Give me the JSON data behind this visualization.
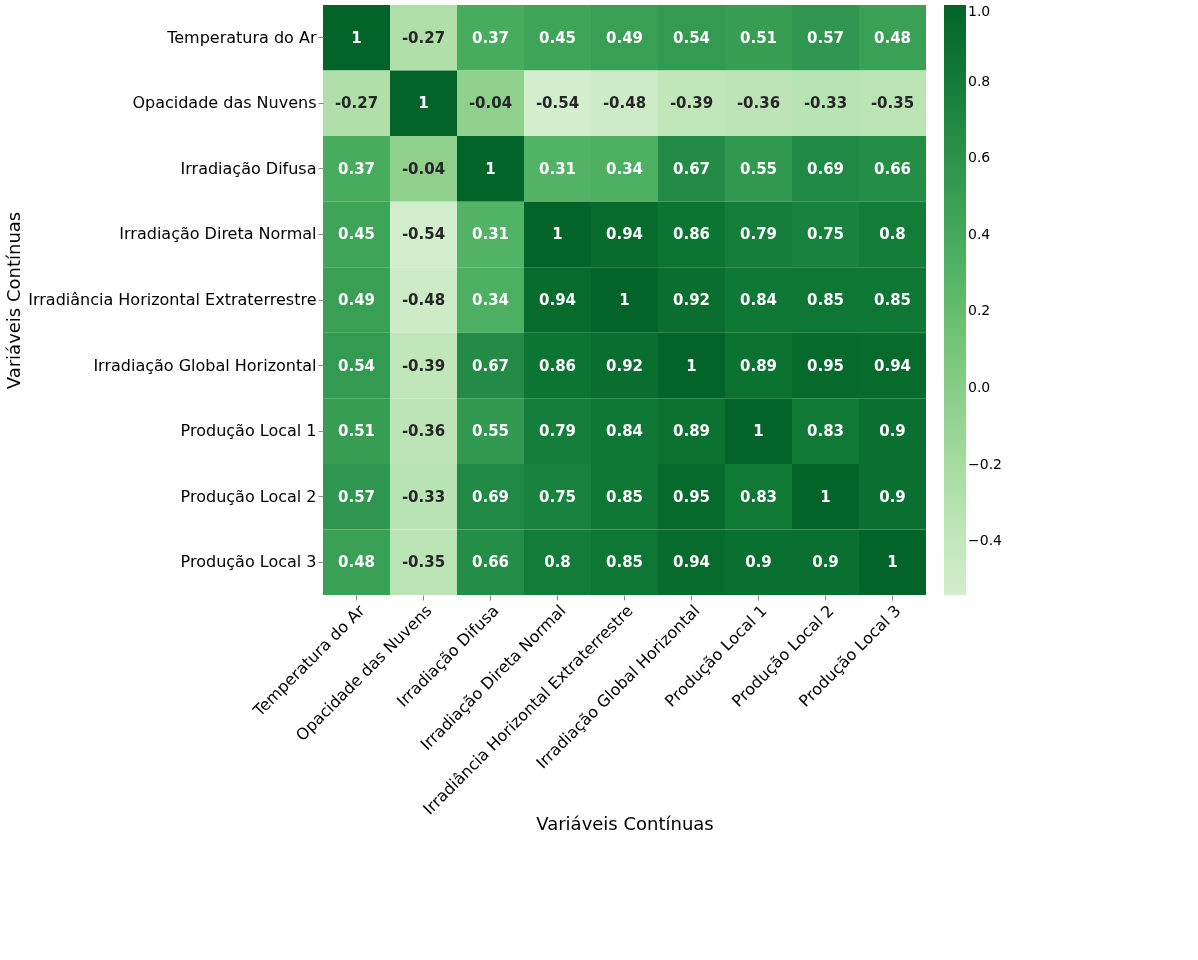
{
  "chart_data": {
    "type": "heatmap",
    "xlabel": "Variáveis Contínuas",
    "ylabel": "Variáveis Contínuas",
    "categories": [
      "Temperatura do Ar",
      "Opacidade das Nuvens",
      "Irradiação Difusa",
      "Irradiação Direta Normal",
      "Irradiância Horizontal Extraterrestre",
      "Irradiação Global Horizontal",
      "Produção Local 1",
      "Produção Local 2",
      "Produção Local 3"
    ],
    "y_categories": [
      "Temperatura do Ar",
      "Opacidade das Nuvens",
      "Irradiação Difusa",
      "Irradiação Direta Normal",
      "Irradiância Horizontal Extraterrestre",
      "Irradiação Global Horizontal",
      "Produção Local 1",
      "Produção Local 2",
      "Produção Local 3"
    ],
    "cells": [
      [
        1,
        -0.27,
        0.37,
        0.45,
        0.49,
        0.54,
        0.51,
        0.57,
        0.48
      ],
      [
        -0.27,
        1,
        -0.04,
        -0.54,
        -0.48,
        -0.39,
        -0.36,
        -0.33,
        -0.35
      ],
      [
        0.37,
        -0.04,
        1,
        0.31,
        0.34,
        0.67,
        0.55,
        0.69,
        0.66
      ],
      [
        0.45,
        -0.54,
        0.31,
        1,
        0.94,
        0.86,
        0.79,
        0.75,
        0.8
      ],
      [
        0.49,
        -0.48,
        0.34,
        0.94,
        1,
        0.92,
        0.84,
        0.85,
        0.85
      ],
      [
        0.54,
        -0.39,
        0.67,
        0.86,
        0.92,
        1,
        0.89,
        0.95,
        0.94
      ],
      [
        0.51,
        -0.36,
        0.55,
        0.79,
        0.84,
        0.89,
        1,
        0.83,
        0.9
      ],
      [
        0.57,
        -0.33,
        0.69,
        0.75,
        0.85,
        0.95,
        0.83,
        1,
        0.9
      ],
      [
        0.48,
        -0.35,
        0.66,
        0.8,
        0.85,
        0.94,
        0.9,
        0.9,
        1
      ]
    ],
    "data_labels": true,
    "clim": [
      -0.54,
      1.0
    ],
    "cticks": [
      {
        "value": -0.4,
        "label": "−0.4"
      },
      {
        "value": -0.2,
        "label": "−0.2"
      },
      {
        "value": 0.0,
        "label": "0.0"
      },
      {
        "value": 0.2,
        "label": "0.2"
      },
      {
        "value": 0.4,
        "label": "0.4"
      },
      {
        "value": 0.6,
        "label": "0.6"
      },
      {
        "value": 0.8,
        "label": "0.8"
      },
      {
        "value": 1.0,
        "label": "1.0"
      }
    ]
  }
}
